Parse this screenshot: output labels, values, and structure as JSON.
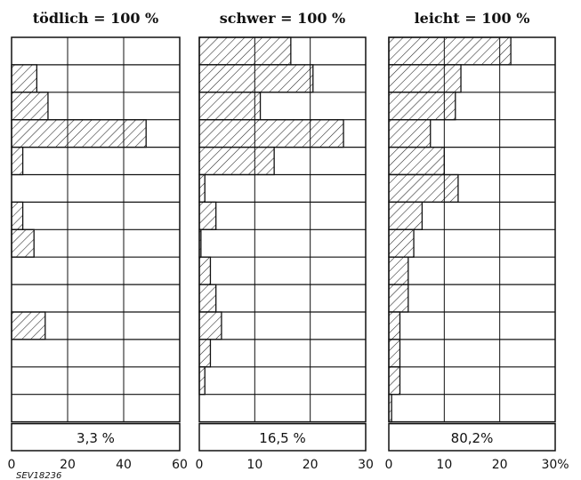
{
  "chart_data": [
    {
      "type": "bar",
      "orientation": "horizontal",
      "title": "tödlich = 100 %",
      "total_label": "3,3 %",
      "xlim": [
        0,
        60
      ],
      "tick_labels": [
        "0",
        "20",
        "40",
        "60"
      ],
      "values": [
        0,
        9,
        13,
        48,
        4,
        0,
        4,
        8,
        0,
        0,
        12,
        0,
        0,
        0
      ],
      "hatched": true,
      "grid": true
    },
    {
      "type": "bar",
      "orientation": "horizontal",
      "title": "schwer = 100 %",
      "total_label": "16,5 %",
      "xlim": [
        0,
        30
      ],
      "tick_labels": [
        "0",
        "10",
        "20",
        "30"
      ],
      "values": [
        16.5,
        20.5,
        11,
        26,
        13.5,
        1,
        3,
        0.3,
        2,
        3,
        4,
        2,
        1,
        0
      ],
      "hatched": true,
      "grid": true
    },
    {
      "type": "bar",
      "orientation": "horizontal",
      "title": "leicht = 100 %",
      "total_label": "80,2%",
      "xlim": [
        0,
        30
      ],
      "tick_labels": [
        "0",
        "10",
        "20",
        "30%"
      ],
      "values": [
        22,
        13,
        12,
        7.5,
        10,
        12.5,
        6,
        4.5,
        3.5,
        3.5,
        2,
        2,
        2,
        0.5
      ],
      "hatched": true,
      "grid": true
    }
  ],
  "figure_code": "SEV18236"
}
